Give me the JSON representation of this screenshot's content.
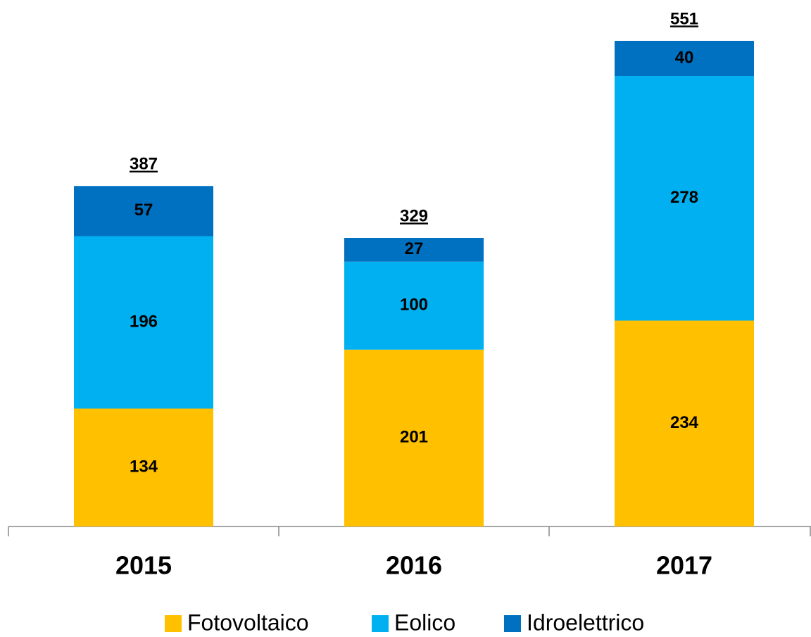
{
  "chart_data": {
    "type": "stacked_bar",
    "categories": [
      "2015",
      "2016",
      "2017"
    ],
    "series": [
      {
        "name": "Fotovoltaico",
        "color": "#FFC000",
        "values": [
          134,
          201,
          234
        ]
      },
      {
        "name": "Eolico",
        "color": "#00B0F0",
        "values": [
          196,
          100,
          278
        ]
      },
      {
        "name": "Idroelettrico",
        "color": "#0070C0",
        "values": [
          57,
          27,
          40
        ]
      }
    ],
    "totals": [
      387,
      329,
      551
    ]
  }
}
